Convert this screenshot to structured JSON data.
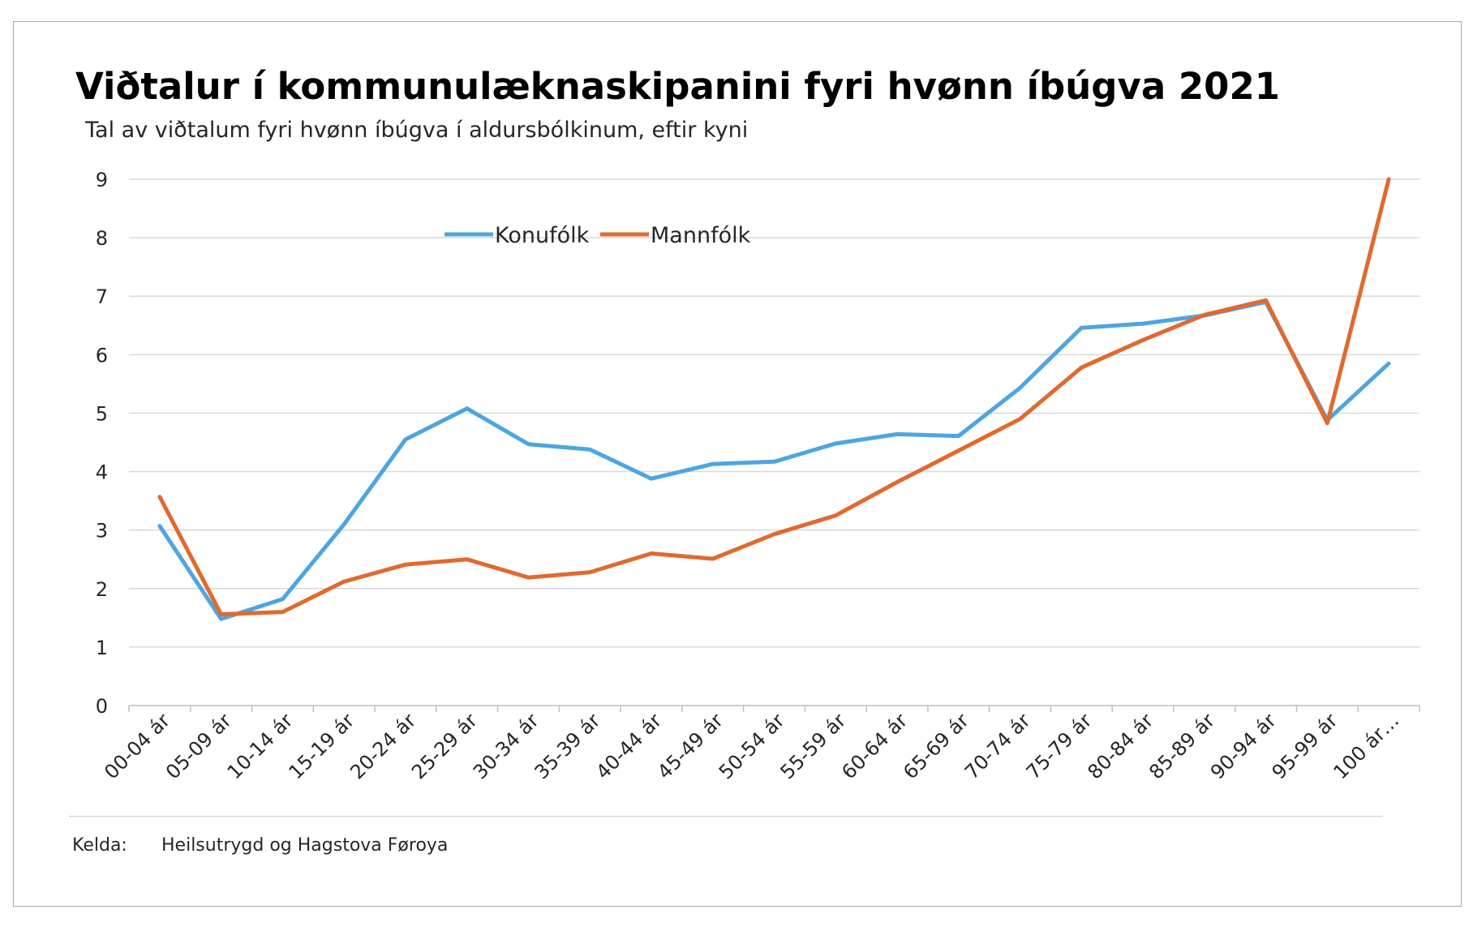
{
  "source": {
    "label": "Kelda:",
    "value": "Heilsutrygd og Hagstova Føroya"
  },
  "chart_data": {
    "type": "line",
    "title": "Viðtalur í kommunulæknaskipanini fyri hvønn íbúgva 2021",
    "subtitle": "Tal av viðtalum fyri hvønn íbúgva í aldursbólkinum, eftir kyni",
    "xlabel": "",
    "ylabel": "",
    "ylim": [
      0,
      9
    ],
    "yticks": [
      0,
      1,
      2,
      3,
      4,
      5,
      6,
      7,
      8,
      9
    ],
    "grid": true,
    "legend_position": "top-center",
    "categories": [
      "00-04 ár",
      "05-09 ár",
      "10-14 ár",
      "15-19 ár",
      "20-24 ár",
      "25-29 ár",
      "30-34 ár",
      "35-39 ár",
      "40-44 ár",
      "45-49 ár",
      "50-54 ár",
      "55-59 ár",
      "60-64 ár",
      "65-69 ár",
      "70-74 ár",
      "75-79 ár",
      "80-84 ár",
      "85-89 ár",
      "90-94 ár",
      "95-99 ár",
      "100 ár…"
    ],
    "series": [
      {
        "name": "Konufólk",
        "color": "#4ea5e0",
        "values": [
          3.07,
          1.48,
          1.82,
          3.1,
          4.55,
          5.08,
          4.47,
          4.38,
          3.88,
          4.13,
          4.17,
          4.48,
          4.64,
          4.61,
          5.43,
          6.46,
          6.53,
          6.67,
          6.9,
          4.88,
          5.85
        ]
      },
      {
        "name": "Mannfólk",
        "color": "#e06a2f",
        "values": [
          3.57,
          1.56,
          1.6,
          2.12,
          2.41,
          2.5,
          2.19,
          2.28,
          2.6,
          2.51,
          2.93,
          3.25,
          3.82,
          4.36,
          4.9,
          5.78,
          6.25,
          6.68,
          6.93,
          4.83,
          9.0
        ]
      }
    ]
  }
}
